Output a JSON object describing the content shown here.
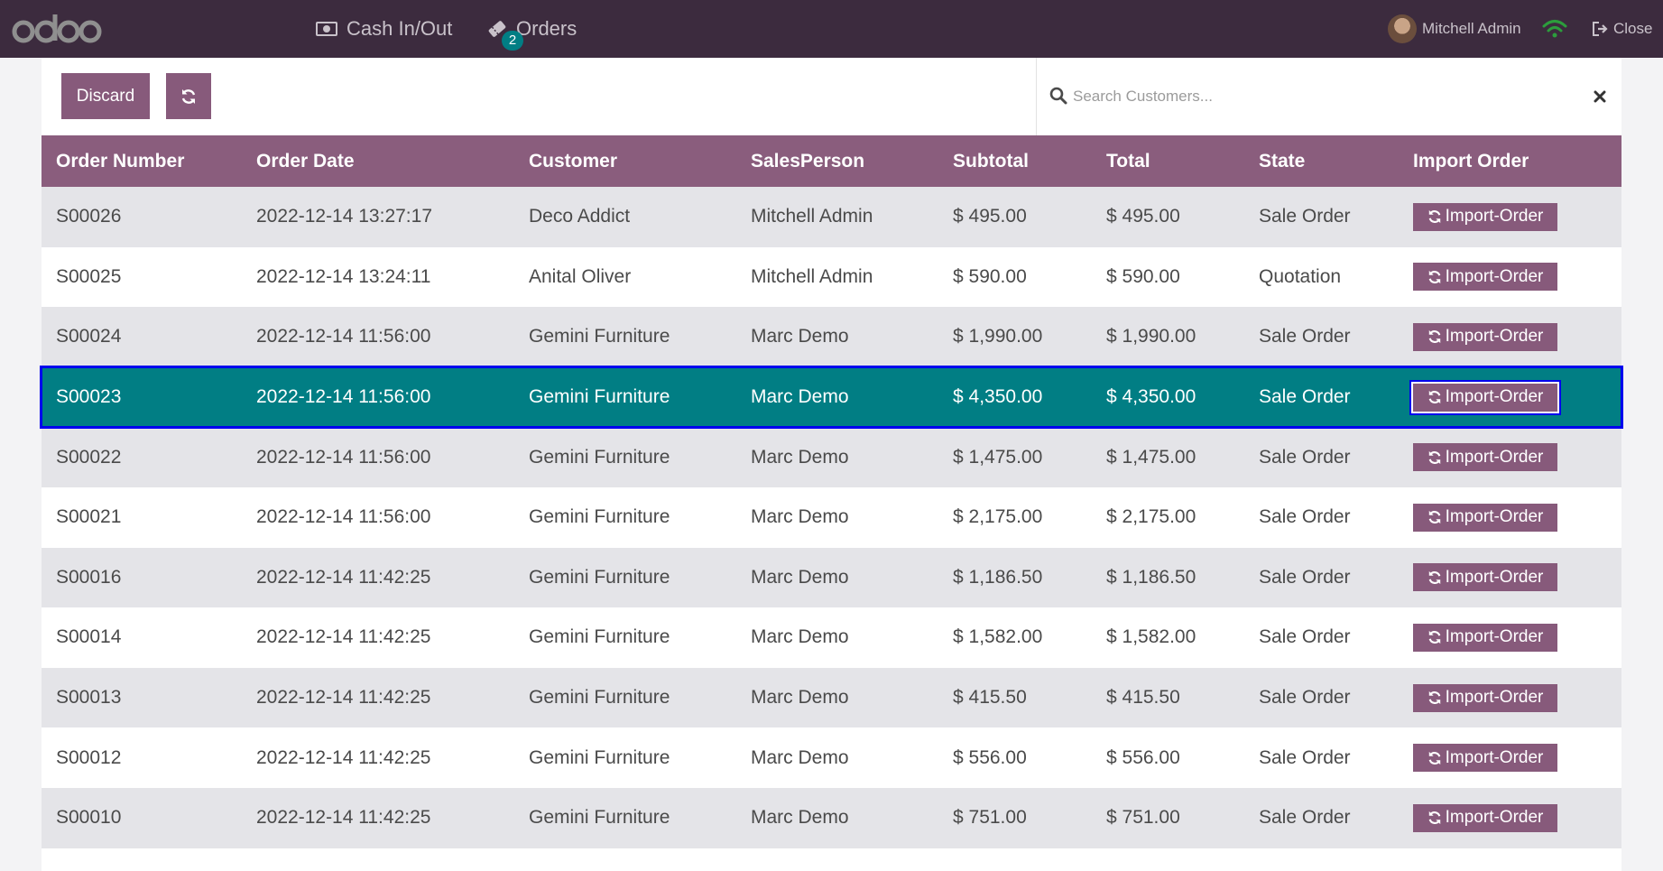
{
  "topbar": {
    "logo_text": "odoo",
    "nav": [
      {
        "label": "Cash In/Out",
        "icon": "money-icon"
      },
      {
        "label": "Orders",
        "icon": "ticket-icon",
        "badge": "2"
      }
    ],
    "user_name": "Mitchell Admin",
    "close_label": "Close"
  },
  "controls": {
    "discard_label": "Discard",
    "search_placeholder": "Search Customers..."
  },
  "table": {
    "headers": [
      "Order Number",
      "Order Date",
      "Customer",
      "SalesPerson",
      "Subtotal",
      "Total",
      "State",
      "Import Order"
    ],
    "import_label": "Import-Order",
    "rows": [
      {
        "number": "S00026",
        "date": "2022-12-14 13:27:17",
        "customer": "Deco Addict",
        "salesperson": "Mitchell Admin",
        "subtotal": "$ 495.00",
        "total": "$ 495.00",
        "state": "Sale Order"
      },
      {
        "number": "S00025",
        "date": "2022-12-14 13:24:11",
        "customer": "Anital Oliver",
        "salesperson": "Mitchell Admin",
        "subtotal": "$ 590.00",
        "total": "$ 590.00",
        "state": "Quotation"
      },
      {
        "number": "S00024",
        "date": "2022-12-14 11:56:00",
        "customer": "Gemini Furniture",
        "salesperson": "Marc Demo",
        "subtotal": "$ 1,990.00",
        "total": "$ 1,990.00",
        "state": "Sale Order"
      },
      {
        "number": "S00023",
        "date": "2022-12-14 11:56:00",
        "customer": "Gemini Furniture",
        "salesperson": "Marc Demo",
        "subtotal": "$ 4,350.00",
        "total": "$ 4,350.00",
        "state": "Sale Order",
        "selected": true
      },
      {
        "number": "S00022",
        "date": "2022-12-14 11:56:00",
        "customer": "Gemini Furniture",
        "salesperson": "Marc Demo",
        "subtotal": "$ 1,475.00",
        "total": "$ 1,475.00",
        "state": "Sale Order"
      },
      {
        "number": "S00021",
        "date": "2022-12-14 11:56:00",
        "customer": "Gemini Furniture",
        "salesperson": "Marc Demo",
        "subtotal": "$ 2,175.00",
        "total": "$ 2,175.00",
        "state": "Sale Order"
      },
      {
        "number": "S00016",
        "date": "2022-12-14 11:42:25",
        "customer": "Gemini Furniture",
        "salesperson": "Marc Demo",
        "subtotal": "$ 1,186.50",
        "total": "$ 1,186.50",
        "state": "Sale Order"
      },
      {
        "number": "S00014",
        "date": "2022-12-14 11:42:25",
        "customer": "Gemini Furniture",
        "salesperson": "Marc Demo",
        "subtotal": "$ 1,582.00",
        "total": "$ 1,582.00",
        "state": "Sale Order"
      },
      {
        "number": "S00013",
        "date": "2022-12-14 11:42:25",
        "customer": "Gemini Furniture",
        "salesperson": "Marc Demo",
        "subtotal": "$ 415.50",
        "total": "$ 415.50",
        "state": "Sale Order"
      },
      {
        "number": "S00012",
        "date": "2022-12-14 11:42:25",
        "customer": "Gemini Furniture",
        "salesperson": "Marc Demo",
        "subtotal": "$ 556.00",
        "total": "$ 556.00",
        "state": "Sale Order"
      },
      {
        "number": "S00010",
        "date": "2022-12-14 11:42:25",
        "customer": "Gemini Furniture",
        "salesperson": "Marc Demo",
        "subtotal": "$ 751.00",
        "total": "$ 751.00",
        "state": "Sale Order"
      }
    ]
  },
  "colors": {
    "topbar": "#3c2b3e",
    "primary": "#875a7b",
    "header": "#8a5d7d",
    "selected_row": "#017e84",
    "focus_outline": "#0000ee",
    "badge": "#017e84"
  }
}
